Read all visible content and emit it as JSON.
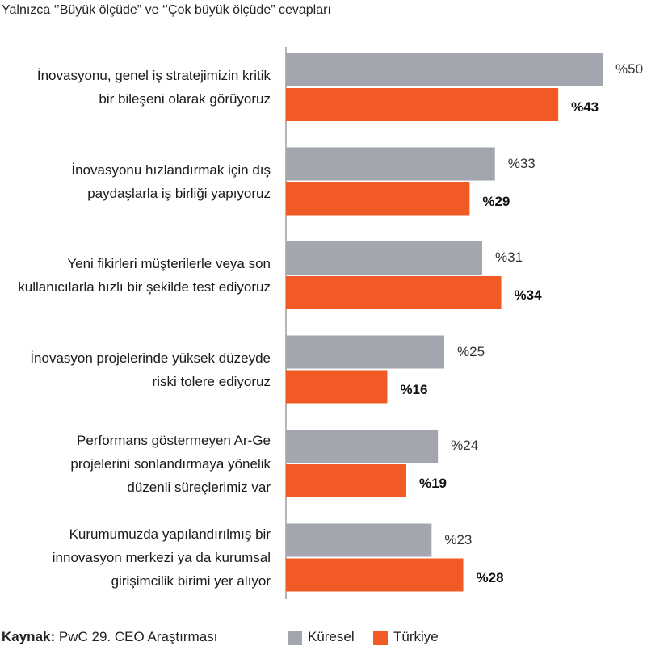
{
  "chart_data": {
    "type": "bar",
    "orientation": "horizontal",
    "subtitle": "Yalnızca ‘’Büyük ölçüde” ve ‘’Çok büyük ölçüde” cevapları",
    "categories": [
      [
        "İnovasyonu, genel iş stratejimizin kritik",
        "bir bileşeni olarak görüyoruz"
      ],
      [
        "İnovasyonu hızlandırmak için dış",
        "paydaşlarla iş birliği yapıyoruz"
      ],
      [
        "Yeni fikirleri müşterilerle veya son",
        "kullanıcılarla hızlı bir şekilde test ediyoruz"
      ],
      [
        "İnovasyon projelerinde yüksek düzeyde",
        "riski tolere ediyoruz"
      ],
      [
        "Performans göstermeyen Ar-Ge",
        "projelerini sonlandırmaya yönelik",
        "düzenli süreçlerimiz var"
      ],
      [
        "Kurumumuzda yapılandırılmış bir",
        "innovasyon merkezi ya da kurumsal",
        "girişimcilik birimi yer alıyor"
      ]
    ],
    "series": [
      {
        "name": "Küresel",
        "values": [
          50,
          33,
          31,
          25,
          24,
          23
        ],
        "labels": [
          "%50",
          "%33",
          "%31",
          "%25",
          "%24",
          "%23"
        ],
        "color": "#a3a6ae"
      },
      {
        "name": "Türkiye",
        "values": [
          43,
          29,
          34,
          16,
          19,
          28
        ],
        "labels": [
          "%43",
          "%29",
          "%34",
          "%16",
          "%19",
          "%28"
        ],
        "color": "#f15a24"
      }
    ],
    "xlim": [
      0,
      50
    ],
    "legend": "bottom-right",
    "grid": false
  },
  "source": {
    "label": "Kaynak:",
    "text": "PwC 29. CEO Araştırması"
  },
  "colors": {
    "axis": "#6b6b6b"
  }
}
